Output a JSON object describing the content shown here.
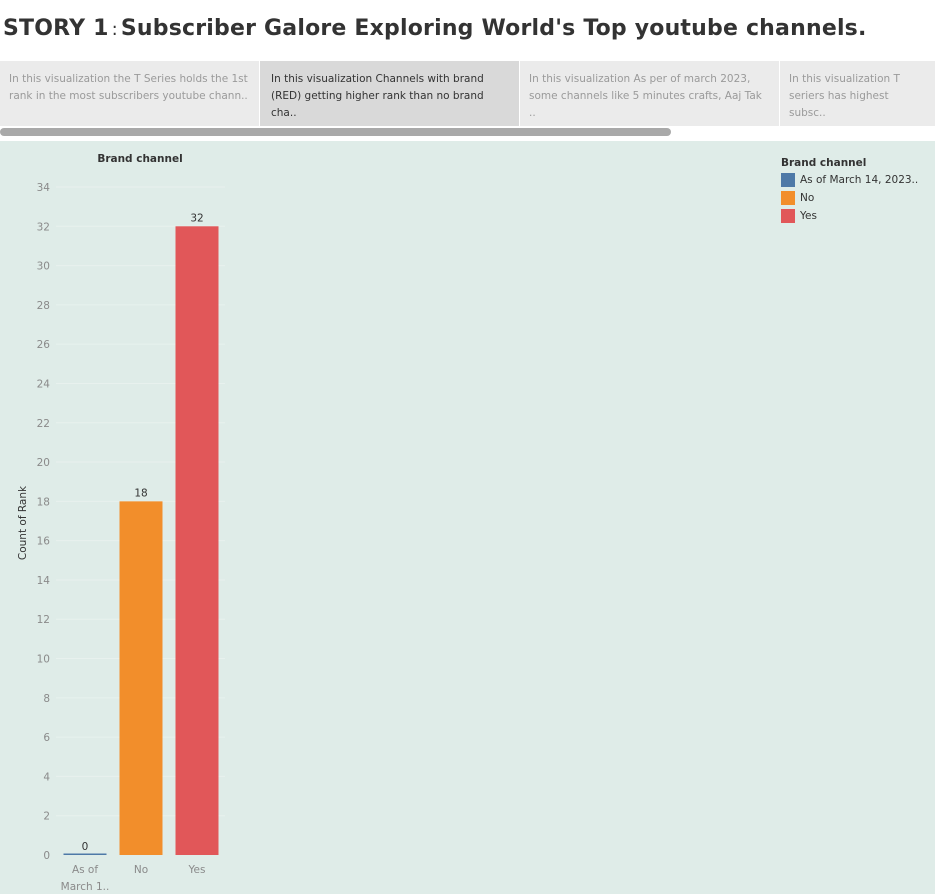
{
  "story": {
    "title_prefix": "STORY 1",
    "separator": ":",
    "title_main": "Subscriber Galore Exploring World's  Top youtube channels."
  },
  "story_points": [
    {
      "text": "In this visualization the T Series holds the 1st rank in the most subscribers youtube chann..",
      "active": false
    },
    {
      "text": "In this visualization Channels with brand (RED) getting higher rank than no brand cha..",
      "active": true
    },
    {
      "text": "In this visualization As per of march 2023, some channels like 5 minutes crafts, Aaj Tak ..",
      "active": false
    },
    {
      "text": "In this visualization T seriers has highest subsc..",
      "active": false
    }
  ],
  "legend": {
    "title": "Brand channel",
    "items": [
      {
        "label": "As of March 14, 2023..",
        "color": "#4e79a7"
      },
      {
        "label": "No",
        "color": "#f28e2b"
      },
      {
        "label": "Yes",
        "color": "#e15759"
      }
    ]
  },
  "chart_data": {
    "type": "bar",
    "title": "Brand channel",
    "xlabel": "",
    "ylabel": "Count of Rank",
    "categories": [
      "As of March 1..",
      "No",
      "Yes"
    ],
    "category_labels": [
      [
        "As of",
        "March 1.."
      ],
      [
        "No"
      ],
      [
        "Yes"
      ]
    ],
    "values": [
      0,
      18,
      32
    ],
    "colors": [
      "#4e79a7",
      "#f28e2b",
      "#e15759"
    ],
    "ylim": [
      0,
      34
    ],
    "yticks": [
      0,
      2,
      4,
      6,
      8,
      10,
      12,
      14,
      16,
      18,
      20,
      22,
      24,
      26,
      28,
      30,
      32,
      34
    ],
    "grid": true,
    "legend_position": "top-right"
  }
}
